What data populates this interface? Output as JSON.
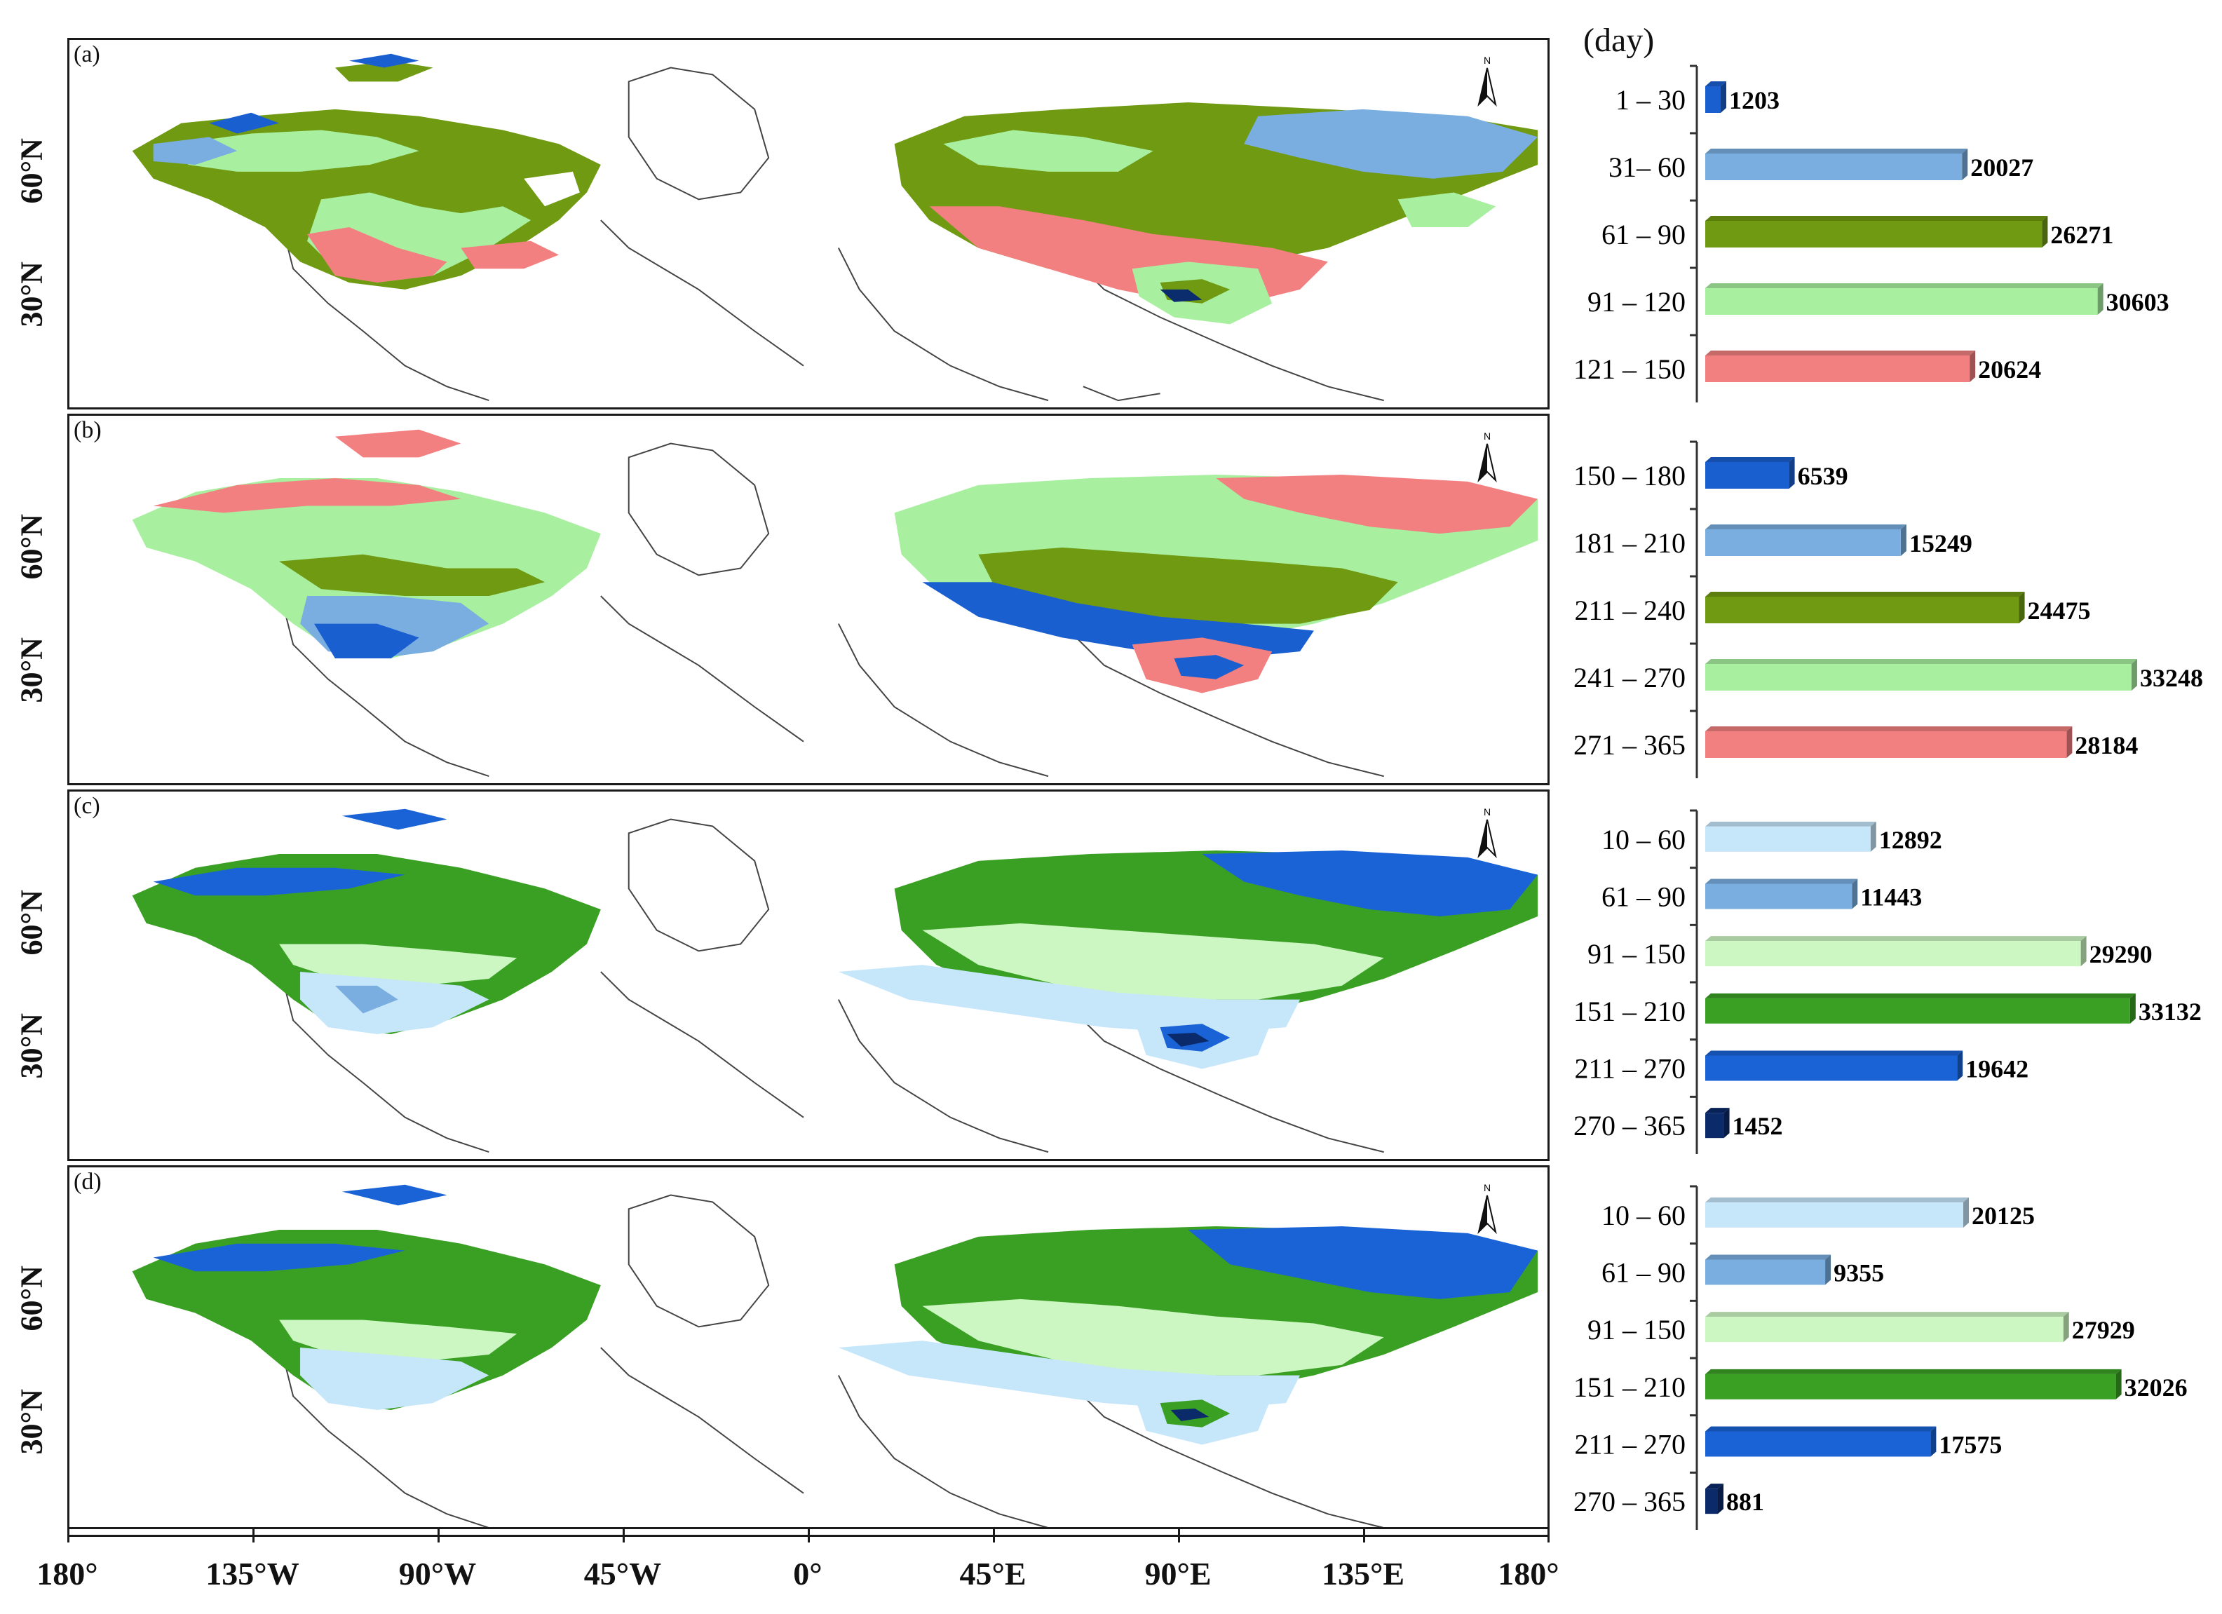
{
  "figure": {
    "unit_label": "(day)",
    "north_symbol": "N",
    "latitude_labels": [
      "60°N",
      "30°N"
    ],
    "longitude_labels": [
      "180°",
      "135°W",
      "90°W",
      "45°W",
      "0°",
      "45°E",
      "90°E",
      "135°E",
      "180°"
    ]
  },
  "panels": [
    {
      "label": "(a)"
    },
    {
      "label": "(b)"
    },
    {
      "label": "(c)"
    },
    {
      "label": "(d)"
    }
  ],
  "colors": {
    "dark_blue": "#0b2d6e",
    "blue": "#1a63d6",
    "light_blue_a": "#7aaee0",
    "olive_green": "#6f9a12",
    "light_green": "#a8f0a0",
    "salmon": "#f28080",
    "pale_blue": "#c6e6fa",
    "pale_green": "#cdf7c2",
    "green": "#3aa024",
    "navy": "#0a2a6a",
    "coast": "#444444"
  },
  "chart_data": [
    {
      "type": "bar",
      "panel": "(a)",
      "categories": [
        "1 – 30",
        "31– 60",
        "61 – 90",
        "91 – 120",
        "121 – 150"
      ],
      "values": [
        1203,
        20027,
        26271,
        30603,
        20624
      ],
      "value_labels": [
        "1203",
        "20027",
        "26271",
        "30603",
        "20624"
      ],
      "colors": [
        "#1a5fd0",
        "#7aaee0",
        "#6f9a12",
        "#a8f0a0",
        "#f28080"
      ]
    },
    {
      "type": "bar",
      "panel": "(b)",
      "categories": [
        "150 – 180",
        "181 – 210",
        "211 – 240",
        "241 – 270",
        "271 – 365"
      ],
      "values": [
        6539,
        15249,
        24475,
        33248,
        28184
      ],
      "value_labels": [
        "6539",
        "15249",
        "24475",
        "33248",
        "28184"
      ],
      "colors": [
        "#1a5fd0",
        "#7aaee0",
        "#6f9a12",
        "#a8f0a0",
        "#f28080"
      ]
    },
    {
      "type": "bar",
      "panel": "(c)",
      "categories": [
        "10 – 60",
        "61 – 90",
        "91 – 150",
        "151 – 210",
        "211 – 270",
        "270 – 365"
      ],
      "values": [
        12892,
        11443,
        29290,
        33132,
        19642,
        1452
      ],
      "value_labels": [
        "12892",
        "11443",
        "29290",
        "33132",
        "19642",
        "1452"
      ],
      "colors": [
        "#c6e6fa",
        "#7aaee0",
        "#cdf7c2",
        "#3aa024",
        "#1a63d6",
        "#0a2a6a"
      ]
    },
    {
      "type": "bar",
      "panel": "(d)",
      "categories": [
        "10 – 60",
        "61 – 90",
        "91 – 150",
        "151 – 210",
        "211 – 270",
        "270 – 365"
      ],
      "values": [
        20125,
        9355,
        27929,
        32026,
        17575,
        881
      ],
      "value_labels": [
        "20125",
        "9355",
        "27929",
        "32026",
        "17575",
        "881"
      ],
      "colors": [
        "#c6e6fa",
        "#7aaee0",
        "#cdf7c2",
        "#3aa024",
        "#1a63d6",
        "#0a2a6a"
      ]
    }
  ]
}
